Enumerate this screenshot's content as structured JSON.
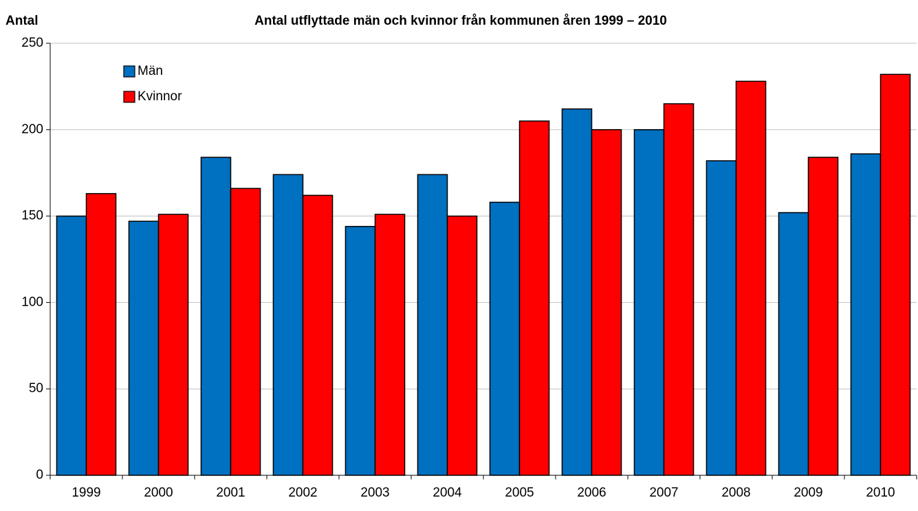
{
  "chart_data": {
    "type": "bar",
    "title": "Antal utflyttade män och kvinnor från kommunen åren 1999 – 2010",
    "y_axis_label": "Antal",
    "categories": [
      "1999",
      "2000",
      "2001",
      "2002",
      "2003",
      "2004",
      "2005",
      "2006",
      "2007",
      "2008",
      "2009",
      "2010"
    ],
    "series": [
      {
        "name": "Män",
        "color": "#0070c0",
        "values": [
          150,
          147,
          184,
          174,
          144,
          174,
          158,
          212,
          200,
          182,
          152,
          186
        ]
      },
      {
        "name": "Kvinnor",
        "color": "#ff0000",
        "values": [
          163,
          151,
          166,
          162,
          151,
          150,
          205,
          200,
          215,
          228,
          184,
          232
        ]
      }
    ],
    "ylim": [
      0,
      250
    ],
    "yticks": [
      0,
      50,
      100,
      150,
      200,
      250
    ],
    "grid": true,
    "legend": "upper left"
  }
}
